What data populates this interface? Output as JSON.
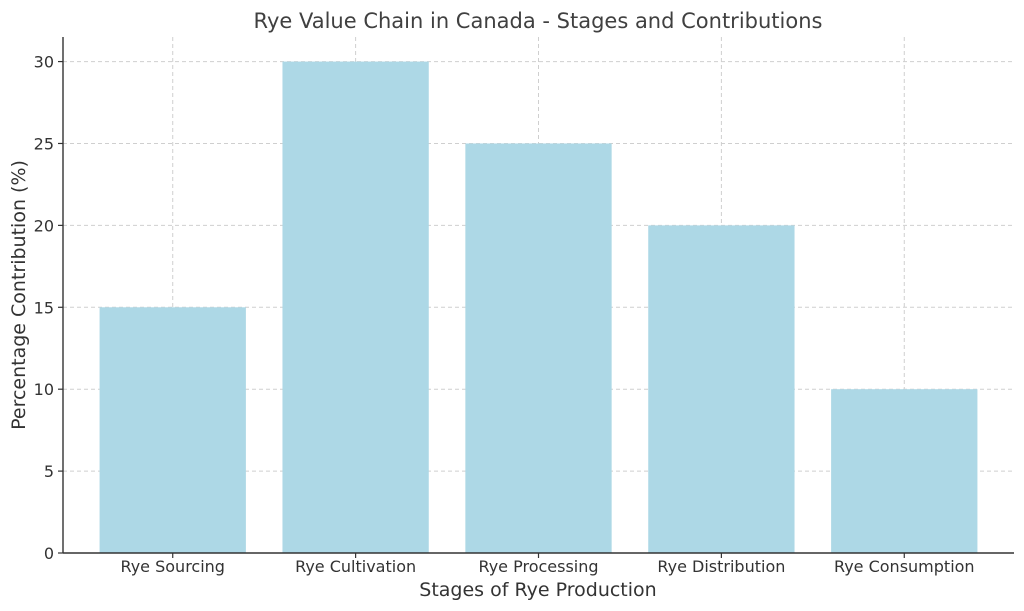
{
  "chart_data": {
    "type": "bar",
    "title": "Rye Value Chain in Canada - Stages and Contributions",
    "xlabel": "Stages of Rye Production",
    "ylabel": "Percentage Contribution (%)",
    "categories": [
      "Rye Sourcing",
      "Rye Cultivation",
      "Rye Processing",
      "Rye Distribution",
      "Rye Consumption"
    ],
    "values": [
      15,
      30,
      25,
      20,
      10
    ],
    "ylim": [
      0,
      31.5
    ],
    "yticks": [
      0,
      5,
      10,
      15,
      20,
      25,
      30
    ],
    "grid": true,
    "bar_color": "#add8e6"
  }
}
